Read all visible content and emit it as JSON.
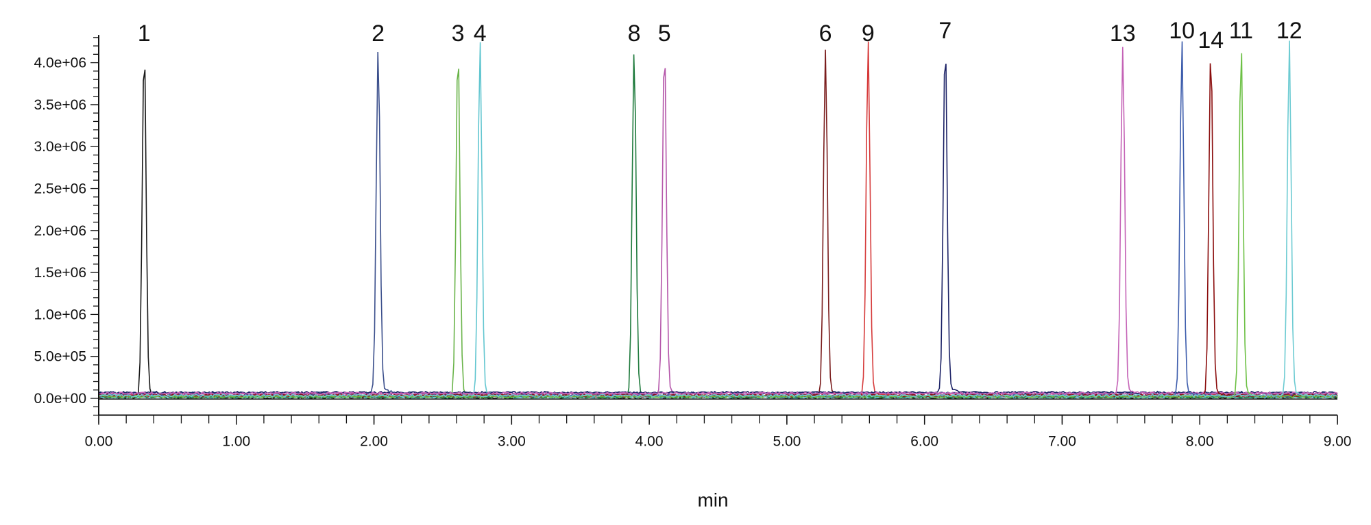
{
  "chart_data": {
    "type": "line",
    "title": "",
    "xlabel": "min",
    "ylabel": "",
    "xlim": [
      0,
      9
    ],
    "ylim": [
      -200000,
      4330000
    ],
    "x_ticks": [
      "0.00",
      "1.00",
      "2.00",
      "3.00",
      "4.00",
      "5.00",
      "6.00",
      "7.00",
      "8.00",
      "9.00"
    ],
    "x_tick_values": [
      0,
      1,
      2,
      3,
      4,
      5,
      6,
      7,
      8,
      9
    ],
    "x_minor_step": 0.2,
    "y_ticks": [
      "0.0e+00",
      "5.0e+05",
      "1.0e+06",
      "1.5e+06",
      "2.0e+06",
      "2.5e+06",
      "3.0e+06",
      "3.5e+06",
      "4.0e+06"
    ],
    "y_tick_values": [
      0,
      500000,
      1000000,
      1500000,
      2000000,
      2500000,
      3000000,
      3500000,
      4000000
    ],
    "y_minor_step": 100000,
    "grid": false,
    "series": [
      {
        "name": "1",
        "rt": 0.33,
        "height": 4130000,
        "color": "#1a1a1a"
      },
      {
        "name": "2",
        "rt": 2.03,
        "height": 4100000,
        "color": "#3b4f8c"
      },
      {
        "name": "3",
        "rt": 2.61,
        "height": 4130000,
        "color": "#6ab44a"
      },
      {
        "name": "4",
        "rt": 2.77,
        "height": 4130000,
        "color": "#62c6d0"
      },
      {
        "name": "8",
        "rt": 3.89,
        "height": 4130000,
        "color": "#1e7a3c"
      },
      {
        "name": "5",
        "rt": 4.11,
        "height": 4130000,
        "color": "#b556aa"
      },
      {
        "name": "6",
        "rt": 5.28,
        "height": 4130000,
        "color": "#7a1c1c"
      },
      {
        "name": "9",
        "rt": 5.59,
        "height": 4130000,
        "color": "#d63a3a"
      },
      {
        "name": "7",
        "rt": 6.15,
        "height": 4150000,
        "color": "#1c2266"
      },
      {
        "name": "13",
        "rt": 7.44,
        "height": 4130000,
        "color": "#c462b6"
      },
      {
        "name": "10",
        "rt": 7.87,
        "height": 4130000,
        "color": "#3c5cac"
      },
      {
        "name": "14",
        "rt": 8.08,
        "height": 4130000,
        "color": "#8a0c0c"
      },
      {
        "name": "11",
        "rt": 8.3,
        "height": 4130000,
        "color": "#6cc044"
      },
      {
        "name": "12",
        "rt": 8.65,
        "height": 4130000,
        "color": "#6ccbd2"
      }
    ]
  }
}
